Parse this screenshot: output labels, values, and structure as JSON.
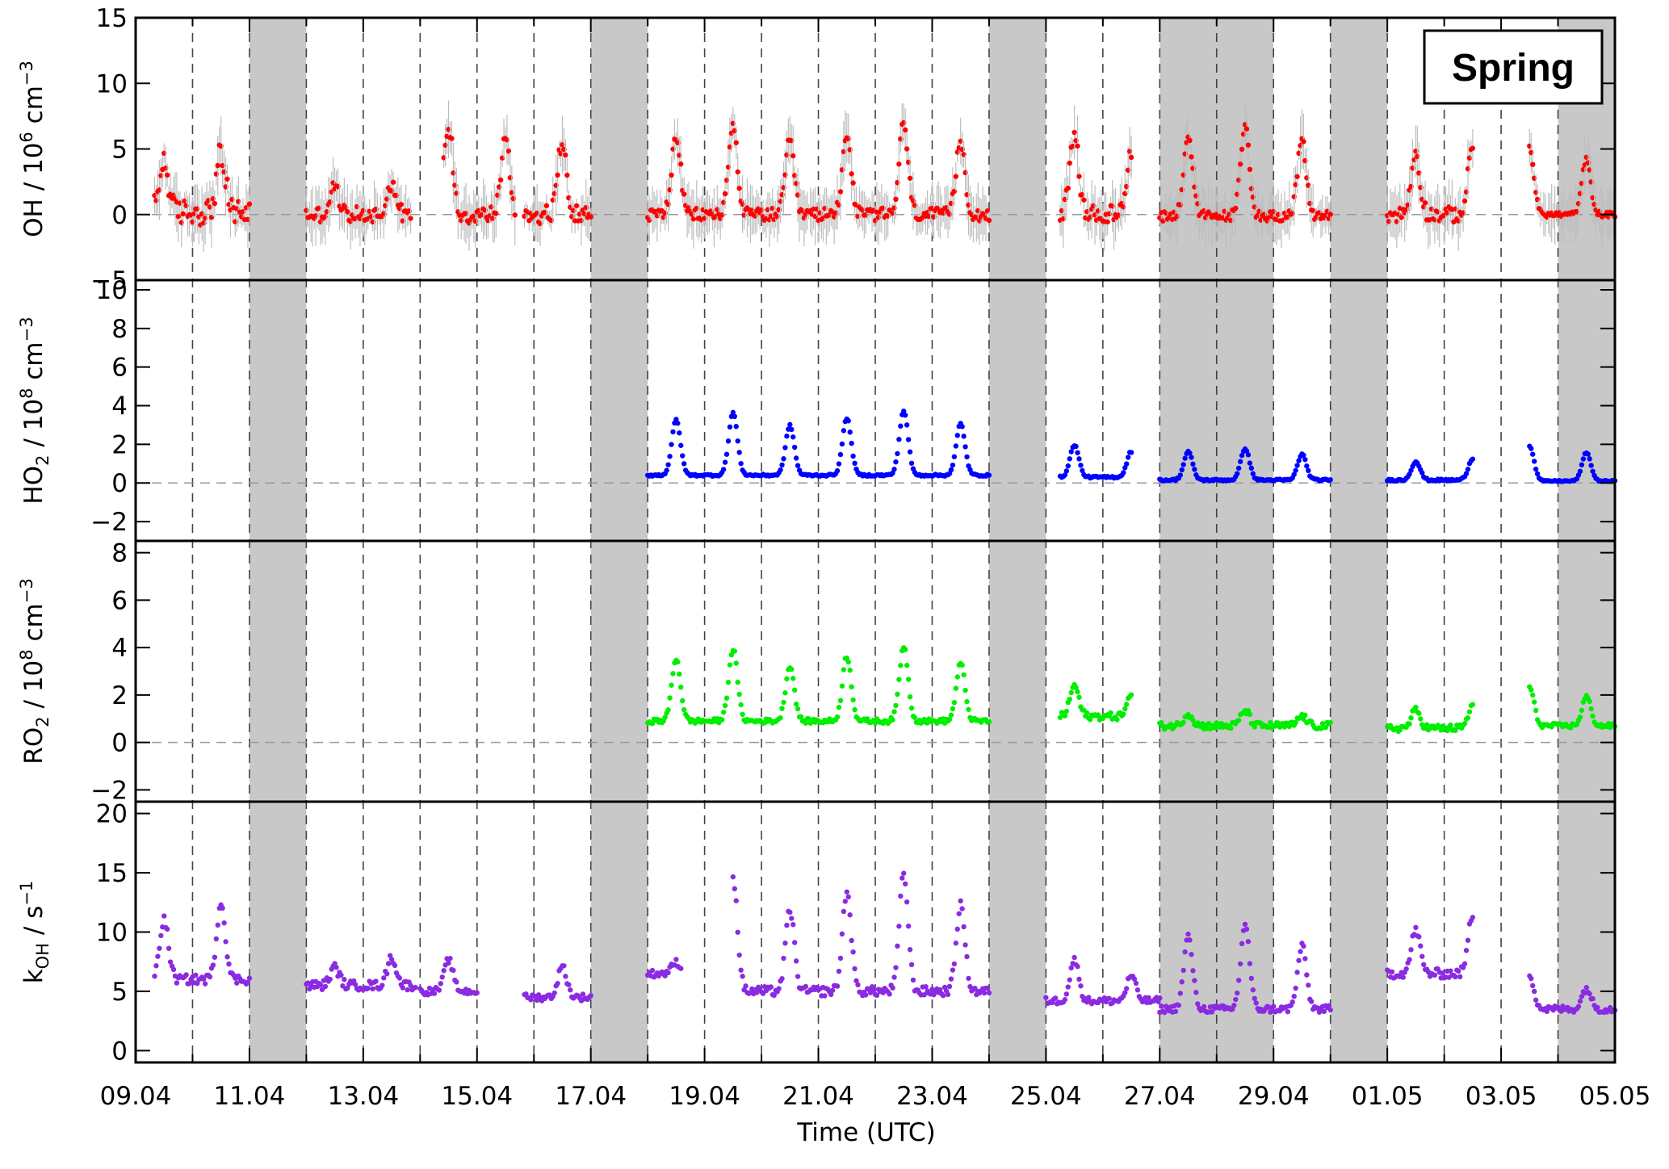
{
  "chart_data": {
    "type": "scatter",
    "badge": "Spring",
    "xlabel": "Time (UTC)",
    "x_range": [
      "2019-04-09",
      "2019-05-05"
    ],
    "x_ticks": [
      "09.04",
      "11.04",
      "13.04",
      "15.04",
      "17.04",
      "19.04",
      "21.04",
      "23.04",
      "25.04",
      "27.04",
      "29.04",
      "01.05",
      "03.05",
      "05.05"
    ],
    "day_gridlines": "dashed vertical line at every midnight",
    "shaded_intervals": [
      [
        "2019-04-11",
        "2019-04-12"
      ],
      [
        "2019-04-17",
        "2019-04-18"
      ],
      [
        "2019-04-24",
        "2019-04-25"
      ],
      [
        "2019-04-27",
        "2019-04-29"
      ],
      [
        "2019-04-30",
        "2019-05-01"
      ],
      [
        "2019-05-04",
        "2019-05-05"
      ]
    ],
    "shade_color": "#c8c8c8",
    "panels": [
      {
        "id": "oh",
        "ylabel": "OH / 10^6 cm^-3",
        "ylabel_parts": [
          "OH  /  10",
          "6",
          " cm",
          "−3"
        ],
        "ylim": [
          -5,
          15
        ],
        "yticks": [
          -5,
          0,
          5,
          10,
          15
        ],
        "zero_line": true,
        "color": "#ff0000",
        "error_bars": true,
        "segments": [
          {
            "start": "2019-04-09T08:00",
            "end": "2019-04-11T00:00",
            "peak": 4.8,
            "base": 0.2,
            "noise": 1.0
          },
          {
            "start": "2019-04-12T00:00",
            "end": "2019-04-13T20:00",
            "peak": 2.4,
            "base": 0.0,
            "noise": 0.6
          },
          {
            "start": "2019-04-14T10:00",
            "end": "2019-04-15T16:00",
            "peak": 6.2,
            "base": 0.0,
            "noise": 0.7
          },
          {
            "start": "2019-04-15T20:00",
            "end": "2019-04-17T00:00",
            "peak": 5.5,
            "base": 0.0,
            "noise": 0.7
          },
          {
            "start": "2019-04-18T00:00",
            "end": "2019-04-24T00:00",
            "peak": 6.5,
            "base": 0.0,
            "noise": 0.5
          },
          {
            "start": "2019-04-25T06:00",
            "end": "2019-04-26T12:00",
            "peak": 5.5,
            "base": 0.0,
            "noise": 0.7
          },
          {
            "start": "2019-04-27T00:00",
            "end": "2019-04-30T00:00",
            "peak": 6.0,
            "base": -0.1,
            "noise": 0.4
          },
          {
            "start": "2019-05-01T00:00",
            "end": "2019-05-02T12:00",
            "peak": 5.5,
            "base": 0.0,
            "noise": 0.6
          },
          {
            "start": "2019-05-03T12:00",
            "end": "2019-05-05T00:00",
            "peak": 4.8,
            "base": 0.0,
            "noise": 0.2
          }
        ]
      },
      {
        "id": "ho2",
        "ylabel": "HO2 / 10^8 cm^-3",
        "ylabel_parts": [
          "HO",
          "2",
          "  /  10",
          "8",
          " cm",
          "−3"
        ],
        "ylim": [
          -3,
          10.5
        ],
        "yticks": [
          -2,
          0,
          2,
          4,
          6,
          8,
          10
        ],
        "zero_line": true,
        "color": "#0000ff",
        "segments": [
          {
            "start": "2019-04-18T00:00",
            "end": "2019-04-24T00:00",
            "peak": 3.5,
            "base": 0.4,
            "noise": 0.05
          },
          {
            "start": "2019-04-25T06:00",
            "end": "2019-04-26T12:00",
            "peak": 1.8,
            "base": 0.3,
            "noise": 0.05
          },
          {
            "start": "2019-04-27T00:00",
            "end": "2019-04-30T00:00",
            "peak": 1.6,
            "base": 0.15,
            "noise": 0.05
          },
          {
            "start": "2019-05-01T00:00",
            "end": "2019-05-02T12:00",
            "peak": 1.3,
            "base": 0.15,
            "noise": 0.05
          },
          {
            "start": "2019-05-03T12:00",
            "end": "2019-05-05T00:00",
            "peak": 1.8,
            "base": 0.1,
            "noise": 0.03
          }
        ]
      },
      {
        "id": "ro2",
        "ylabel": "RO2 / 10^8 cm^-3",
        "ylabel_parts": [
          "RO",
          "2",
          "  /  10",
          "8",
          " cm",
          "−3"
        ],
        "ylim": [
          -2.5,
          8.5
        ],
        "yticks": [
          -2,
          0,
          2,
          4,
          6,
          8
        ],
        "zero_line": true,
        "color": "#00ee00",
        "segments": [
          {
            "start": "2019-04-18T00:00",
            "end": "2019-04-24T00:00",
            "peak": 3.8,
            "base": 0.9,
            "noise": 0.1
          },
          {
            "start": "2019-04-25T06:00",
            "end": "2019-04-26T12:00",
            "peak": 2.2,
            "base": 1.1,
            "noise": 0.15
          },
          {
            "start": "2019-04-27T00:00",
            "end": "2019-04-30T00:00",
            "peak": 1.2,
            "base": 0.7,
            "noise": 0.15
          },
          {
            "start": "2019-05-01T00:00",
            "end": "2019-05-02T12:00",
            "peak": 1.6,
            "base": 0.6,
            "noise": 0.15
          },
          {
            "start": "2019-05-03T12:00",
            "end": "2019-05-05T00:00",
            "peak": 2.2,
            "base": 0.7,
            "noise": 0.1
          }
        ]
      },
      {
        "id": "koh",
        "ylabel": "kOH / s^-1",
        "ylabel_parts": [
          "k",
          "OH",
          "  /  s",
          "−1"
        ],
        "ylim": [
          -1,
          21
        ],
        "yticks": [
          0,
          5,
          10,
          15,
          20
        ],
        "zero_line": false,
        "color": "#8a2be2",
        "segments": [
          {
            "start": "2019-04-09T08:00",
            "end": "2019-04-11T00:00",
            "peak": 13.0,
            "base": 6.0,
            "noise": 0.4
          },
          {
            "start": "2019-04-12T00:00",
            "end": "2019-04-13T22:00",
            "peak": 8.0,
            "base": 5.5,
            "noise": 0.4
          },
          {
            "start": "2019-04-14T00:00",
            "end": "2019-04-15T00:00",
            "peak": 7.0,
            "base": 5.0,
            "noise": 0.3
          },
          {
            "start": "2019-04-15T20:00",
            "end": "2019-04-17T00:00",
            "peak": 7.0,
            "base": 4.5,
            "noise": 0.3
          },
          {
            "start": "2019-04-18T00:00",
            "end": "2019-04-18T14:00",
            "peak": 8.0,
            "base": 6.5,
            "noise": 0.3
          },
          {
            "start": "2019-04-19T12:00",
            "end": "2019-04-24T00:00",
            "peak": 14.0,
            "base": 5.0,
            "noise": 0.4
          },
          {
            "start": "2019-04-25T00:00",
            "end": "2019-04-27T00:00",
            "peak": 7.0,
            "base": 4.2,
            "noise": 0.3
          },
          {
            "start": "2019-04-27T00:00",
            "end": "2019-04-30T00:00",
            "peak": 9.5,
            "base": 3.5,
            "noise": 0.3
          },
          {
            "start": "2019-05-01T00:00",
            "end": "2019-05-02T12:00",
            "peak": 12.0,
            "base": 6.5,
            "noise": 0.4
          },
          {
            "start": "2019-05-03T12:00",
            "end": "2019-05-05T00:00",
            "peak": 6.0,
            "base": 3.5,
            "noise": 0.3
          }
        ]
      }
    ]
  }
}
